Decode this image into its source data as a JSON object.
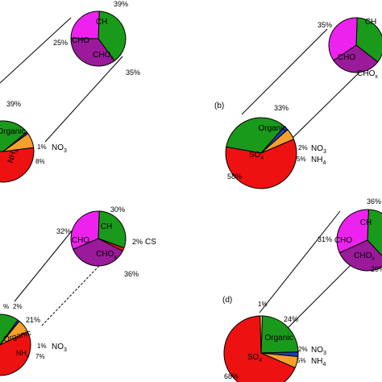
{
  "panels": [
    {
      "label": "",
      "main": {
        "slices": [
          {
            "name": "Organic",
            "value": 39,
            "pct_label": "39%",
            "color": "#1a9a1a"
          },
          {
            "name": "NO3",
            "value": 1,
            "pct_label": "1%",
            "color": "#1f3fbf"
          },
          {
            "name": "NH4",
            "value": 8,
            "pct_label": "8%",
            "color": "#f7a12a"
          },
          {
            "name": "SO4",
            "value": 52,
            "pct_label": "",
            "color": "#ee1111"
          }
        ]
      },
      "inset": {
        "slices": [
          {
            "name": "CH",
            "value": 39,
            "pct_label": "39%",
            "color": "#1a9a1a"
          },
          {
            "name": "CHOx",
            "value": 35,
            "pct_label": "35%",
            "color": "#9a1a9a"
          },
          {
            "name": "CHO",
            "value": 25,
            "pct_label": "25%",
            "color": "#ee22ee"
          }
        ]
      }
    },
    {
      "label": "(b)",
      "main": {
        "slices": [
          {
            "name": "Organic",
            "value": 33,
            "pct_label": "33%",
            "color": "#1a9a1a"
          },
          {
            "name": "NO3",
            "value": 2,
            "pct_label": "2%",
            "color": "#1f3fbf"
          },
          {
            "name": "NH4",
            "value": 5,
            "pct_label": "5%",
            "color": "#f7a12a"
          },
          {
            "name": "SO4",
            "value": 58,
            "pct_label": "58%",
            "color": "#ee1111"
          }
        ]
      },
      "inset": {
        "slices": [
          {
            "name": "CH",
            "value": 35,
            "pct_label": "",
            "color": "#1a9a1a"
          },
          {
            "name": "CHOx",
            "value": 30,
            "pct_label": "",
            "color": "#9a1a9a"
          },
          {
            "name": "CHO",
            "value": 35,
            "pct_label": "35%",
            "color": "#ee22ee"
          }
        ]
      }
    },
    {
      "label": "",
      "main": {
        "slices": [
          {
            "name": "Organic",
            "value": 21,
            "pct_label": "21%",
            "color": "#1a9a1a"
          },
          {
            "name": "NO3",
            "value": 1,
            "pct_label": "1%",
            "color": "#1f3fbf"
          },
          {
            "name": "NH4",
            "value": 7,
            "pct_label": "7%",
            "color": "#f7a12a"
          },
          {
            "name": "SO4",
            "value": 69,
            "pct_label": "",
            "color": "#ee1111"
          },
          {
            "name": "CS",
            "value": 2,
            "pct_label": "2%",
            "color": "#d4cf3a"
          }
        ]
      },
      "inset": {
        "slices": [
          {
            "name": "CH",
            "value": 30,
            "pct_label": "30%",
            "color": "#1a9a1a"
          },
          {
            "name": "CS",
            "value": 2,
            "pct_label": "2%",
            "color": "#ee1111"
          },
          {
            "name": "CHOx",
            "value": 36,
            "pct_label": "36%",
            "color": "#9a1a9a"
          },
          {
            "name": "CHO",
            "value": 32,
            "pct_label": "32%",
            "color": "#ee22ee"
          }
        ]
      }
    },
    {
      "label": "(d)",
      "main": {
        "slices": [
          {
            "name": "Organic",
            "value": 24,
            "pct_label": "24%",
            "color": "#1a9a1a"
          },
          {
            "name": "NO3",
            "value": 2,
            "pct_label": "2%",
            "color": "#1f3fbf"
          },
          {
            "name": "NH4",
            "value": 5,
            "pct_label": "5%",
            "color": "#f7a12a"
          },
          {
            "name": "SO4",
            "value": 68,
            "pct_label": "68%",
            "color": "#ee1111"
          },
          {
            "name": "CS",
            "value": 1,
            "pct_label": "1%",
            "color": "#d4cf3a"
          }
        ]
      },
      "inset": {
        "slices": [
          {
            "name": "CH",
            "value": 36,
            "pct_label": "36%",
            "color": "#1a9a1a"
          },
          {
            "name": "CHOx",
            "value": 29,
            "pct_label": "29%",
            "color": "#9a1a9a"
          },
          {
            "name": "CHO",
            "value": 31,
            "pct_label": "31%",
            "color": "#ee22ee"
          }
        ]
      }
    }
  ],
  "extra_labels": {
    "panel3_hatch_pct": "%",
    "panel3_small_pct": "2%"
  },
  "chart_data": [
    {
      "type": "pie",
      "title": "",
      "labels": [
        "Organic",
        "NO3",
        "NH4",
        "SO4"
      ],
      "values": [
        39,
        1,
        8,
        52
      ]
    },
    {
      "type": "pie",
      "title": "",
      "labels": [
        "CH",
        "CHOx",
        "CHO"
      ],
      "values": [
        39,
        35,
        25
      ]
    },
    {
      "type": "pie",
      "title": "(b)",
      "labels": [
        "Organic",
        "NO3",
        "NH4",
        "SO4"
      ],
      "values": [
        33,
        2,
        5,
        58
      ]
    },
    {
      "type": "pie",
      "title": "",
      "labels": [
        "CH",
        "CHOx",
        "CHO"
      ],
      "values": [
        35,
        30,
        35
      ]
    },
    {
      "type": "pie",
      "title": "",
      "labels": [
        "Organic",
        "NO3",
        "NH4",
        "SO4",
        "CS"
      ],
      "values": [
        21,
        1,
        7,
        69,
        2
      ]
    },
    {
      "type": "pie",
      "title": "",
      "labels": [
        "CH",
        "CS",
        "CHOx",
        "CHO"
      ],
      "values": [
        30,
        2,
        36,
        32
      ]
    },
    {
      "type": "pie",
      "title": "(d)",
      "labels": [
        "Organic",
        "NO3",
        "NH4",
        "SO4",
        "CS"
      ],
      "values": [
        24,
        2,
        5,
        68,
        1
      ]
    },
    {
      "type": "pie",
      "title": "",
      "labels": [
        "CH",
        "CHOx",
        "CHO"
      ],
      "values": [
        36,
        29,
        31
      ]
    }
  ]
}
